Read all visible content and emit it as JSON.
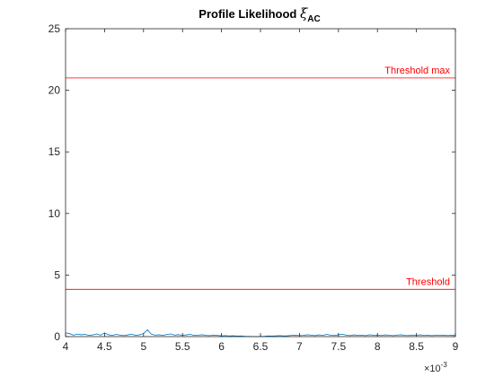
{
  "chart_data": {
    "type": "line",
    "title": {
      "main": "Profile Likelihood ",
      "symbol": "ξ",
      "subscript": "AC"
    },
    "xlabel": "",
    "ylabel": "",
    "xlim": [
      0.004,
      0.009
    ],
    "ylim": [
      0,
      25
    ],
    "x_exponent_label": {
      "base": "×10",
      "exponent": "-3"
    },
    "x_ticks": [
      4,
      4.5,
      5,
      5.5,
      6,
      6.5,
      7,
      7.5,
      8,
      8.5,
      9
    ],
    "x_tick_labels": [
      "4",
      "4.5",
      "5",
      "5.5",
      "6",
      "6.5",
      "7",
      "7.5",
      "8",
      "8.5",
      "9"
    ],
    "y_ticks": [
      0,
      5,
      10,
      15,
      20,
      25
    ],
    "y_tick_labels": [
      "0",
      "5",
      "10",
      "15",
      "20",
      "25"
    ],
    "grid": false,
    "series": [
      {
        "color": "#0072bd",
        "x": [
          0.004,
          0.00405,
          0.0041,
          0.00415,
          0.0042,
          0.00425,
          0.0043,
          0.00435,
          0.0044,
          0.00445,
          0.0045,
          0.00455,
          0.0046,
          0.00465,
          0.0047,
          0.00475,
          0.0048,
          0.00485,
          0.0049,
          0.00495,
          0.005,
          0.00505,
          0.0051,
          0.00515,
          0.0052,
          0.00525,
          0.0053,
          0.00535,
          0.0054,
          0.00545,
          0.0055,
          0.00555,
          0.0056,
          0.00565,
          0.0057,
          0.00575,
          0.0058,
          0.00585,
          0.0059,
          0.00595,
          0.006,
          0.00605,
          0.0061,
          0.00615,
          0.0062,
          0.00625,
          0.0063,
          0.00635,
          0.0064,
          0.00645,
          0.0065,
          0.00655,
          0.0066,
          0.00665,
          0.0067,
          0.00675,
          0.0068,
          0.00685,
          0.0069,
          0.00695,
          0.007,
          0.00705,
          0.0071,
          0.00715,
          0.0072,
          0.00725,
          0.0073,
          0.00735,
          0.0074,
          0.00745,
          0.0075,
          0.00755,
          0.0076,
          0.00765,
          0.0077,
          0.00775,
          0.0078,
          0.00785,
          0.0079,
          0.00795,
          0.008,
          0.00805,
          0.0081,
          0.00815,
          0.0082,
          0.00825,
          0.0083,
          0.00835,
          0.0084,
          0.00845,
          0.0085,
          0.00855,
          0.0086,
          0.00865,
          0.0087,
          0.00875,
          0.0088,
          0.00885,
          0.0089,
          0.00895,
          0.009
        ],
        "y": [
          0.3,
          0.25,
          0.12,
          0.2,
          0.15,
          0.18,
          0.1,
          0.14,
          0.22,
          0.12,
          0.3,
          0.15,
          0.1,
          0.18,
          0.12,
          0.08,
          0.14,
          0.2,
          0.1,
          0.15,
          0.25,
          0.55,
          0.2,
          0.12,
          0.15,
          0.1,
          0.18,
          0.22,
          0.12,
          0.16,
          0.1,
          0.14,
          0.18,
          0.1,
          0.12,
          0.15,
          0.1,
          0.08,
          0.12,
          0.1,
          0.06,
          0.08,
          0.05,
          0.07,
          0.04,
          0.05,
          0.03,
          0.02,
          0.01,
          0.0,
          0.02,
          0.03,
          0.05,
          0.04,
          0.06,
          0.08,
          0.05,
          0.07,
          0.1,
          0.12,
          0.08,
          0.1,
          0.15,
          0.12,
          0.08,
          0.14,
          0.1,
          0.18,
          0.12,
          0.09,
          0.15,
          0.2,
          0.12,
          0.08,
          0.14,
          0.1,
          0.12,
          0.08,
          0.15,
          0.1,
          0.12,
          0.09,
          0.14,
          0.11,
          0.08,
          0.12,
          0.15,
          0.1,
          0.09,
          0.13,
          0.11,
          0.14,
          0.1,
          0.12,
          0.08,
          0.13,
          0.1,
          0.12,
          0.09,
          0.11,
          0.1
        ]
      }
    ],
    "reference_lines": [
      {
        "label": "Threshold max",
        "y": 21.0,
        "color": "#ff0000"
      },
      {
        "label": "Threshold",
        "y": 3.84,
        "color": "#ff0000"
      }
    ]
  }
}
